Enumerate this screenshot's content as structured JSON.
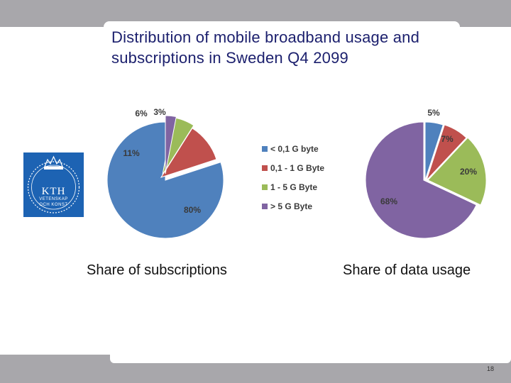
{
  "slide": {
    "title": "Distribution of mobile broadband usage and subscriptions in Sweden Q4 2099",
    "page_number": "18",
    "logo": {
      "name": "KTH",
      "text": "KTH",
      "sub1": "VETENSKAP",
      "sub2": "OCH KONST",
      "color": "#1d63b3"
    }
  },
  "chart_data": [
    {
      "type": "pie",
      "title": "Share of subscriptions",
      "categories": [
        "< 0,1 G byte",
        "0,1 - 1 G Byte",
        "1 - 5 G Byte",
        "> 5 G Byte"
      ],
      "values": [
        80,
        11,
        6,
        3
      ],
      "labels": [
        "80%",
        "11%",
        "6%",
        "3%"
      ],
      "colors": [
        "#4f81bd",
        "#c0504d",
        "#9bbb59",
        "#8064a2"
      ],
      "legend": "right"
    },
    {
      "type": "pie",
      "title": "Share of data usage",
      "categories": [
        "< 0,1 G byte",
        "0,1 - 1 G Byte",
        "1 - 5 G Byte",
        "> 5 G Byte"
      ],
      "values": [
        5,
        7,
        20,
        68
      ],
      "labels": [
        "5%",
        "7%",
        "20%",
        "68%"
      ],
      "colors": [
        "#4f81bd",
        "#c0504d",
        "#9bbb59",
        "#8064a2"
      ]
    }
  ]
}
